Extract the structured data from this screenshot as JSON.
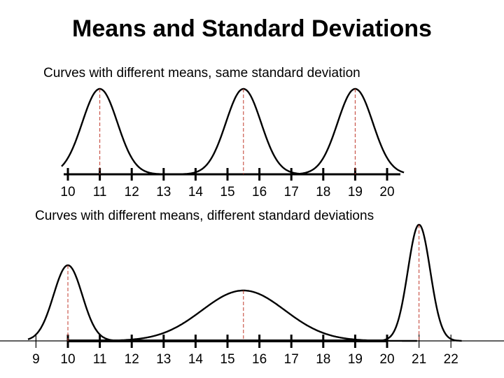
{
  "slide": {
    "title": "Means and Standard Deviations"
  },
  "panels": [
    {
      "caption": "Curves with different means, same standard deviation",
      "tick_labels": [
        "10",
        "11",
        "12",
        "13",
        "14",
        "15",
        "16",
        "17",
        "18",
        "19",
        "20"
      ],
      "curves": [
        {
          "mean": 11,
          "sd": 0.55
        },
        {
          "mean": 15.5,
          "sd": 0.55
        },
        {
          "mean": 19,
          "sd": 0.55
        }
      ]
    },
    {
      "caption": "Curves with different means, different standard deviations",
      "tick_labels": [
        "9",
        "10",
        "11",
        "12",
        "13",
        "14",
        "15",
        "16",
        "17",
        "18",
        "19",
        "20",
        "21",
        "22"
      ],
      "curves": [
        {
          "mean": 10,
          "sd": 0.45
        },
        {
          "mean": 15.5,
          "sd": 1.3
        },
        {
          "mean": 21,
          "sd": 0.35
        }
      ]
    }
  ],
  "colors": {
    "curve": "#000000",
    "axis": "#000000",
    "mean_line": "#c0392b"
  }
}
